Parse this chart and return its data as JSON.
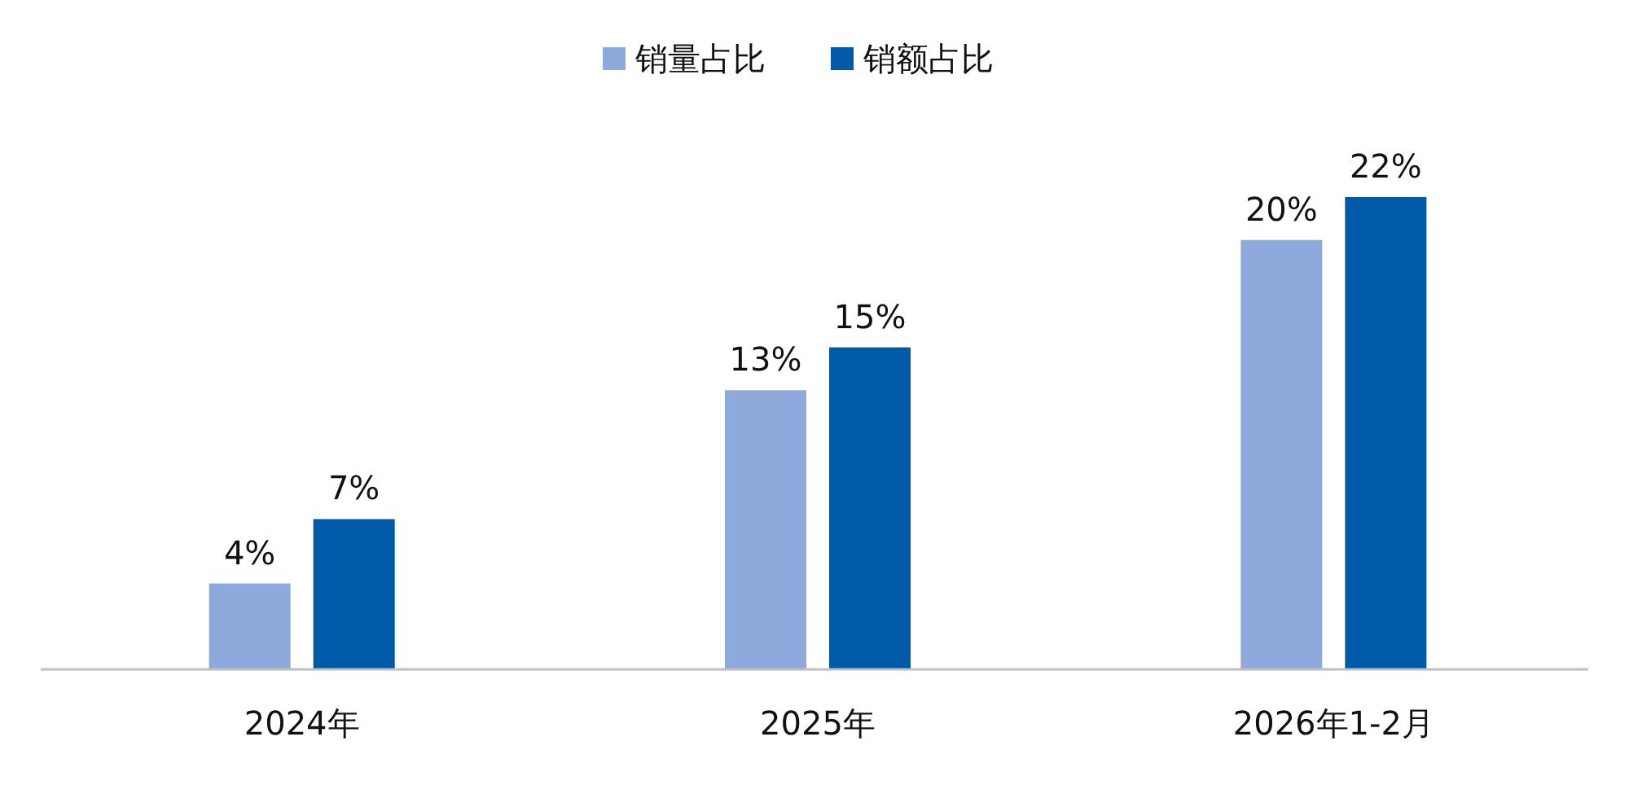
{
  "chart_data": {
    "type": "bar",
    "categories": [
      "2024年",
      "2025年",
      "2026年1-2月"
    ],
    "legend": "top",
    "series": [
      {
        "name": "销量占比",
        "color": "#8eaadc",
        "values": [
          4,
          13,
          20
        ],
        "value_labels": [
          "4%",
          "13%",
          "20%"
        ]
      },
      {
        "name": "销额占比",
        "color": "#0059a9",
        "values": [
          7,
          15,
          22
        ],
        "value_labels": [
          "7%",
          "15%",
          "22%"
        ]
      }
    ]
  }
}
